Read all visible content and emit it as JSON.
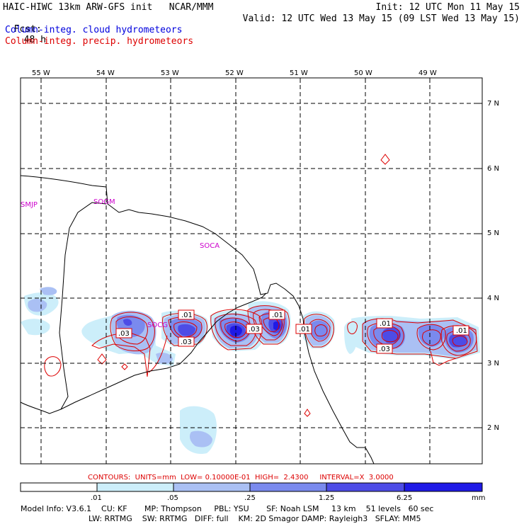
{
  "header": {
    "model_line": "HAIC-HIWC 13km ARW-GFS init   NCAR/MMM",
    "fcst_label": "Fcst:",
    "fcst_value": "48 h",
    "init_line": "Init: 12 UTC Mon 11 May 15",
    "valid_line": "Valid: 12 UTC Wed 13 May 15 (09 LST Wed 13 May 15)",
    "legend_cloud": "Column-integ. cloud hydrometeors",
    "legend_precip": "Column-integ. precip. hydrometeors"
  },
  "map": {
    "lon_labels": [
      "55 W",
      "54 W",
      "53 W",
      "52 W",
      "51 W",
      "50 W",
      "49 W"
    ],
    "lat_labels": [
      "7 N",
      "6 N",
      "5 N",
      "4 N",
      "3 N",
      "2 N"
    ],
    "stations": [
      "SMJP",
      "SOGM",
      "SOCA",
      "SOCG"
    ],
    "contour_labels": [
      ".03",
      ".01",
      ".03",
      ".03",
      ".01",
      ".01",
      ".01",
      ".03",
      ".01"
    ]
  },
  "footer": {
    "contours_line": "CONTOURS:  UNITS=mm  LOW= 0.10000E-01  HIGH=  2.4300     INTERVAL=X  3.0000",
    "colorbar_ticks": [
      ".01",
      ".05",
      ".25",
      "1.25",
      "6.25"
    ],
    "colorbar_unit": "mm",
    "colorbar_colors": [
      "#ffffff",
      "#cceefa",
      "#aac0f4",
      "#7a8aee",
      "#4d4ce6",
      "#1f1ae6"
    ],
    "model_info_1": "Model Info: V3.6.1    CU: KF       MP: Thompson     PBL: YSU       SF: Noah LSM     13 km    51 levels   60 sec",
    "model_info_2": "LW: RRTMG    SW: RRTMG   DIFF: full    KM: 2D Smagor DAMP: Rayleigh3   SFLAY: MM5"
  }
}
